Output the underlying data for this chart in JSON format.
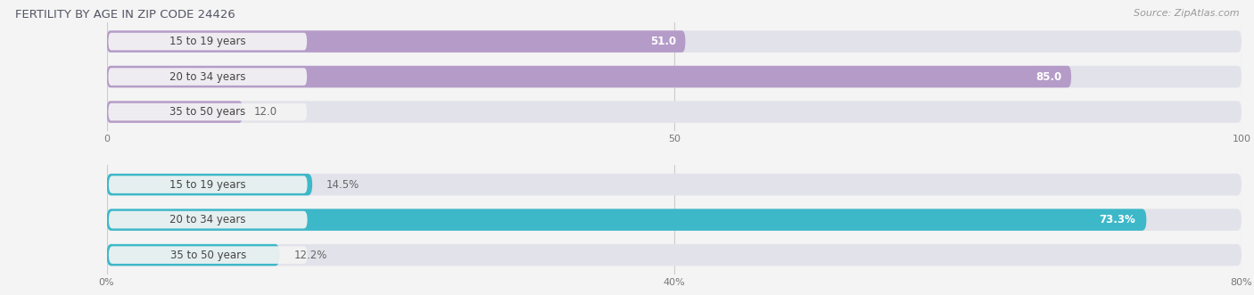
{
  "title": "FERTILITY BY AGE IN ZIP CODE 24426",
  "source": "Source: ZipAtlas.com",
  "title_color": "#555566",
  "source_color": "#999999",
  "top_chart": {
    "categories": [
      "15 to 19 years",
      "20 to 34 years",
      "35 to 50 years"
    ],
    "values": [
      51.0,
      85.0,
      12.0
    ],
    "bar_color": "#b59cc8",
    "label_color_inside": "#ffffff",
    "label_color_outside": "#888888",
    "xmax": 100.0,
    "xticks": [
      0.0,
      50.0,
      100.0
    ],
    "xlabel_suffix": ""
  },
  "bottom_chart": {
    "categories": [
      "15 to 19 years",
      "20 to 34 years",
      "35 to 50 years"
    ],
    "values": [
      14.5,
      73.3,
      12.2
    ],
    "bar_color": "#3db8c8",
    "label_color_inside": "#ffffff",
    "label_color_outside": "#888888",
    "xmax": 80.0,
    "xticks": [
      0.0,
      40.0,
      80.0
    ],
    "xlabel_suffix": "%"
  },
  "background_color": "#f4f4f4",
  "bar_bg_color": "#e2e2ea",
  "label_fontsize": 8.5,
  "category_fontsize": 8.5,
  "tick_fontsize": 8,
  "bar_height": 0.62,
  "pill_bg_color": "#f4f4f4"
}
